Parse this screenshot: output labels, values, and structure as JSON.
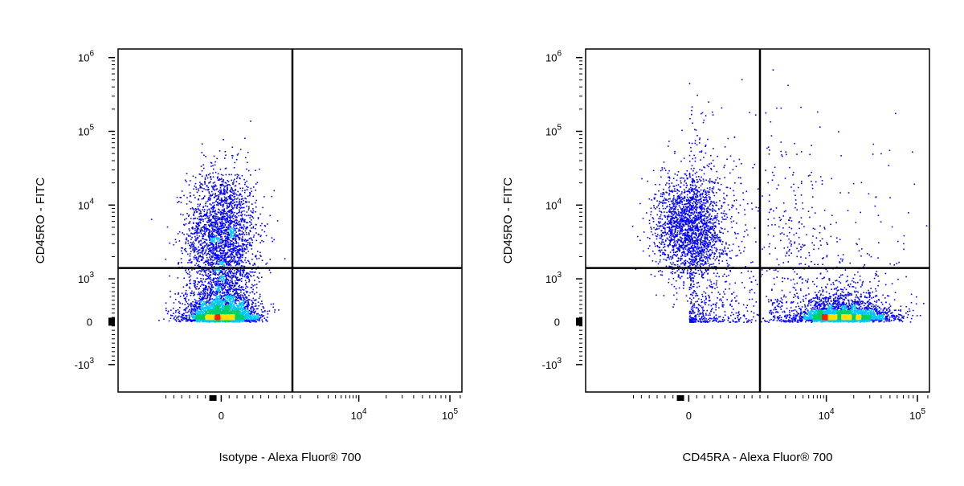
{
  "chart_data": [
    {
      "type": "scatter",
      "subtype": "flow-cytometry-density-dot-plot",
      "title": "",
      "xlabel": "Isotype - Alexa Fluor® 700",
      "ylabel": "CD45RO - FITC",
      "x_scale": "biexponential",
      "y_scale": "biexponential",
      "xlim": [
        -800,
        130000
      ],
      "ylim": [
        -2500,
        1200000
      ],
      "x_ticks": [
        {
          "value": 0,
          "label": "0"
        },
        {
          "value": 10000,
          "label": "10",
          "exp": "4"
        },
        {
          "value": 100000,
          "label": "10",
          "exp": "5"
        }
      ],
      "y_ticks": [
        {
          "value": 1000000,
          "label": "10",
          "exp": "6"
        },
        {
          "value": 100000,
          "label": "10",
          "exp": "5"
        },
        {
          "value": 10000,
          "label": "10",
          "exp": "4"
        },
        {
          "value": 1000,
          "label": "10",
          "exp": "3"
        },
        {
          "value": 0,
          "label": "0"
        },
        {
          "value": -1000,
          "label": "-10",
          "exp": "3"
        }
      ],
      "quadrant_gate": {
        "x": 900,
        "y": 1400
      },
      "populations": [
        {
          "x": 0,
          "y": 4000,
          "x_spread": 220,
          "y_spread": 0.45,
          "count": 2300
        },
        {
          "x": 0,
          "y": 200,
          "x_spread": 220,
          "y_spread": 0.45,
          "count": 3400
        }
      ],
      "color_scale": [
        "#0000ff",
        "#00c8ff",
        "#00d060",
        "#ffe000",
        "#ff2000"
      ],
      "grid": false
    },
    {
      "type": "scatter",
      "subtype": "flow-cytometry-density-dot-plot",
      "title": "",
      "xlabel": "CD45RA - Alexa Fluor® 700",
      "ylabel": "CD45RO - FITC",
      "x_scale": "biexponential",
      "y_scale": "biexponential",
      "xlim": [
        -800,
        130000
      ],
      "ylim": [
        -2500,
        1200000
      ],
      "x_ticks": [
        {
          "value": 0,
          "label": "0"
        },
        {
          "value": 10000,
          "label": "10",
          "exp": "4"
        },
        {
          "value": 100000,
          "label": "10",
          "exp": "5"
        }
      ],
      "y_ticks": [
        {
          "value": 1000000,
          "label": "10",
          "exp": "6"
        },
        {
          "value": 100000,
          "label": "10",
          "exp": "5"
        },
        {
          "value": 10000,
          "label": "10",
          "exp": "4"
        },
        {
          "value": 1000,
          "label": "10",
          "exp": "3"
        },
        {
          "value": 0,
          "label": "0"
        },
        {
          "value": -1000,
          "label": "-10",
          "exp": "3"
        }
      ],
      "quadrant_gate": {
        "x": 900,
        "y": 1400
      },
      "populations": [
        {
          "x": 0,
          "y": 5000,
          "x_spread": 220,
          "y_spread": 0.35,
          "count": 1900
        },
        {
          "x": 15000,
          "y": 150,
          "x_spread": 0.25,
          "y_spread": 0.35,
          "count": 3000
        },
        {
          "x": 2000,
          "y": 700,
          "x_spread": 0.9,
          "y_spread": 0.9,
          "count": 900
        },
        {
          "x": 200,
          "y": 1500,
          "x_spread": 0.7,
          "y_spread": 1.2,
          "count": 500
        }
      ],
      "color_scale": [
        "#0000ff",
        "#00c8ff",
        "#00d060",
        "#ffe000",
        "#ff2000"
      ],
      "grid": false
    }
  ]
}
